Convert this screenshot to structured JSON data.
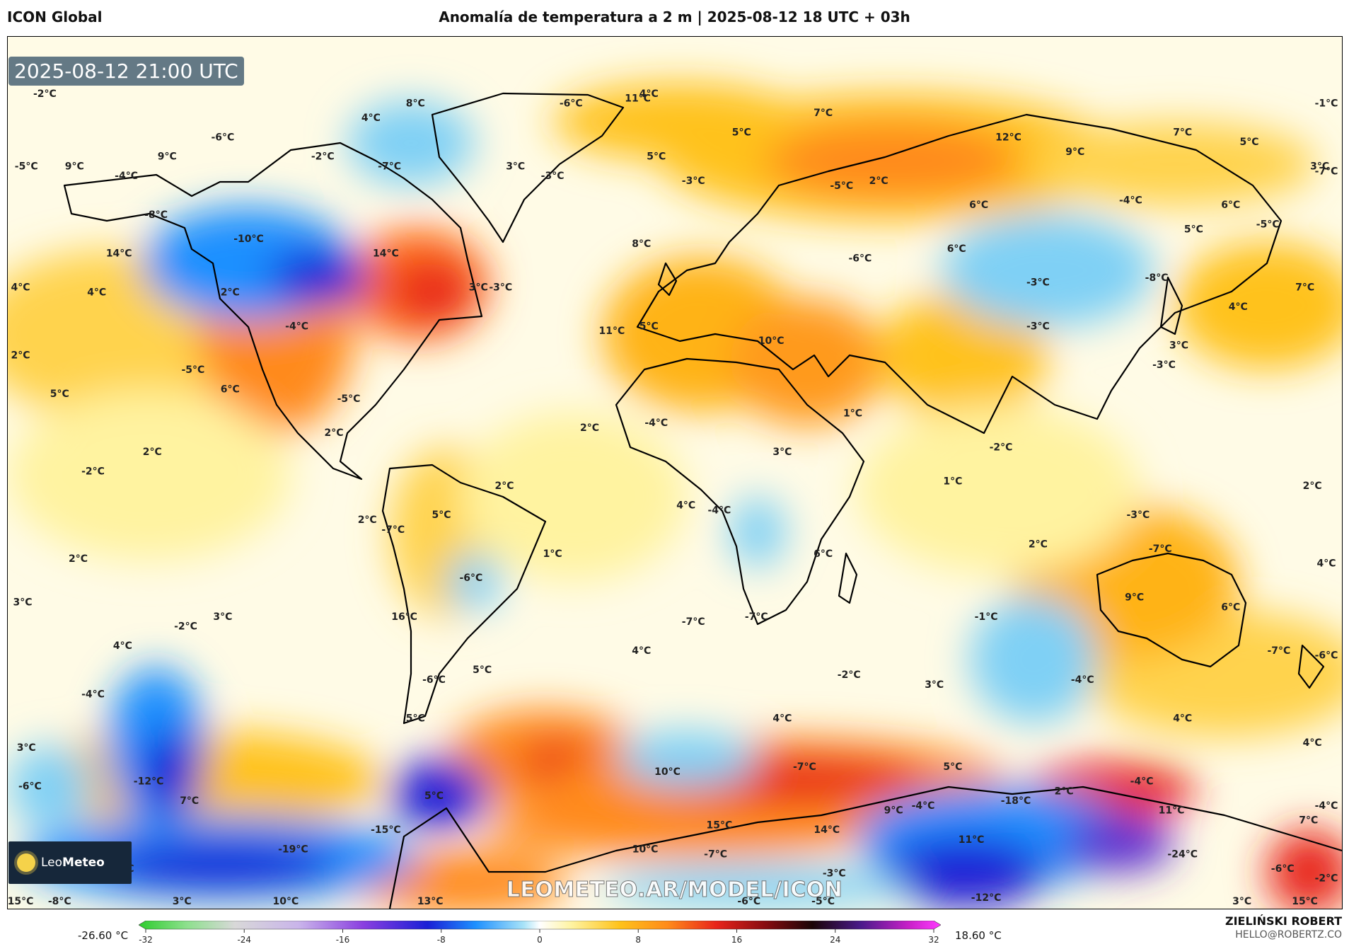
{
  "header": {
    "model_name": "ICON Global",
    "title": "Anomalía de temperatura a 2 m | 2025-08-12 18 UTC + 03h"
  },
  "map": {
    "valid_time": "2025-08-12 21:00 UTC",
    "watermark": "LEOMETEO.AR/MODEL/ICON",
    "logo_text_light": "Leo",
    "logo_text_bold": "Meteo",
    "labels": [
      {
        "text": "-2°C",
        "lon": -170,
        "lat": 80
      },
      {
        "text": "-6°C",
        "lon": -28,
        "lat": 78
      },
      {
        "text": "11°C",
        "lon": -10,
        "lat": 79
      },
      {
        "text": "4°C",
        "lon": -7,
        "lat": 80
      },
      {
        "text": "8°C",
        "lon": -70,
        "lat": 78
      },
      {
        "text": "4°C",
        "lon": -82,
        "lat": 75
      },
      {
        "text": "-6°C",
        "lon": -122,
        "lat": 71
      },
      {
        "text": "9°C",
        "lon": -137,
        "lat": 67
      },
      {
        "text": "-2°C",
        "lon": -95,
        "lat": 67
      },
      {
        "text": "-5°C",
        "lon": -175,
        "lat": 65
      },
      {
        "text": "9°C",
        "lon": -162,
        "lat": 65
      },
      {
        "text": "-4°C",
        "lon": -148,
        "lat": 63
      },
      {
        "text": "-7°C",
        "lon": -77,
        "lat": 65
      },
      {
        "text": "3°C",
        "lon": -43,
        "lat": 65
      },
      {
        "text": "-3°C",
        "lon": -33,
        "lat": 63
      },
      {
        "text": "-3°C",
        "lon": 5,
        "lat": 62
      },
      {
        "text": "5°C",
        "lon": 18,
        "lat": 72
      },
      {
        "text": "7°C",
        "lon": 40,
        "lat": 76
      },
      {
        "text": "5°C",
        "lon": -5,
        "lat": 67
      },
      {
        "text": "-5°C",
        "lon": 45,
        "lat": 61
      },
      {
        "text": "2°C",
        "lon": 55,
        "lat": 62
      },
      {
        "text": "12°C",
        "lon": 90,
        "lat": 71
      },
      {
        "text": "9°C",
        "lon": 108,
        "lat": 68
      },
      {
        "text": "7°C",
        "lon": 137,
        "lat": 72
      },
      {
        "text": "5°C",
        "lon": 155,
        "lat": 70
      },
      {
        "text": "-1°C",
        "lon": 177,
        "lat": 78
      },
      {
        "text": "3°C",
        "lon": 174,
        "lat": 65
      },
      {
        "text": "-7°C",
        "lon": 177,
        "lat": 64
      },
      {
        "text": "6°C",
        "lon": 82,
        "lat": 57
      },
      {
        "text": "-4°C",
        "lon": 123,
        "lat": 58
      },
      {
        "text": "6°C",
        "lon": 150,
        "lat": 57
      },
      {
        "text": "5°C",
        "lon": 140,
        "lat": 52
      },
      {
        "text": "-5°C",
        "lon": 160,
        "lat": 53
      },
      {
        "text": "-8°C",
        "lon": -140,
        "lat": 55
      },
      {
        "text": "-10°C",
        "lon": -115,
        "lat": 50
      },
      {
        "text": "14°C",
        "lon": -78,
        "lat": 47
      },
      {
        "text": "14°C",
        "lon": -150,
        "lat": 47
      },
      {
        "text": "4°C",
        "lon": -177,
        "lat": 40
      },
      {
        "text": "4°C",
        "lon": -156,
        "lat": 39
      },
      {
        "text": "2°C",
        "lon": -120,
        "lat": 39
      },
      {
        "text": "3°C",
        "lon": -53,
        "lat": 40
      },
      {
        "text": "-3°C",
        "lon": -47,
        "lat": 40
      },
      {
        "text": "8°C",
        "lon": -9,
        "lat": 49
      },
      {
        "text": "6°C",
        "lon": 76,
        "lat": 48
      },
      {
        "text": "-6°C",
        "lon": 50,
        "lat": 46
      },
      {
        "text": "-3°C",
        "lon": 98,
        "lat": 41
      },
      {
        "text": "-8°C",
        "lon": 130,
        "lat": 42
      },
      {
        "text": "7°C",
        "lon": 170,
        "lat": 40
      },
      {
        "text": "-4°C",
        "lon": -102,
        "lat": 32
      },
      {
        "text": "11°C",
        "lon": -17,
        "lat": 31
      },
      {
        "text": "5°C",
        "lon": -7,
        "lat": 32
      },
      {
        "text": "10°C",
        "lon": 26,
        "lat": 29
      },
      {
        "text": "-3°C",
        "lon": 98,
        "lat": 32
      },
      {
        "text": "4°C",
        "lon": 152,
        "lat": 36
      },
      {
        "text": "3°C",
        "lon": 136,
        "lat": 28
      },
      {
        "text": "-3°C",
        "lon": 132,
        "lat": 24
      },
      {
        "text": "2°C",
        "lon": -178,
        "lat": 26
      },
      {
        "text": "-5°C",
        "lon": -130,
        "lat": 23
      },
      {
        "text": "5°C",
        "lon": -166,
        "lat": 18
      },
      {
        "text": "6°C",
        "lon": -120,
        "lat": 19
      },
      {
        "text": "-5°C",
        "lon": -88,
        "lat": 17
      },
      {
        "text": "1°C",
        "lon": 48,
        "lat": 14
      },
      {
        "text": "2°C",
        "lon": -92,
        "lat": 10
      },
      {
        "text": "2°C",
        "lon": -23,
        "lat": 11
      },
      {
        "text": "-4°C",
        "lon": -5,
        "lat": 12
      },
      {
        "text": "3°C",
        "lon": 29,
        "lat": 6
      },
      {
        "text": "-2°C",
        "lon": 88,
        "lat": 7
      },
      {
        "text": "2°C",
        "lon": -141,
        "lat": 6
      },
      {
        "text": "-2°C",
        "lon": -157,
        "lat": 2
      },
      {
        "text": "2°C",
        "lon": -46,
        "lat": -1
      },
      {
        "text": "1°C",
        "lon": 75,
        "lat": 0
      },
      {
        "text": "2°C",
        "lon": 172,
        "lat": -1
      },
      {
        "text": "2°C",
        "lon": -83,
        "lat": -8
      },
      {
        "text": "-7°C",
        "lon": -76,
        "lat": -10
      },
      {
        "text": "5°C",
        "lon": -63,
        "lat": -7
      },
      {
        "text": "4°C",
        "lon": 3,
        "lat": -5
      },
      {
        "text": "-4°C",
        "lon": 12,
        "lat": -6
      },
      {
        "text": "2°C",
        "lon": 98,
        "lat": -13
      },
      {
        "text": "-3°C",
        "lon": 125,
        "lat": -7
      },
      {
        "text": "-6°C",
        "lon": -55,
        "lat": -20
      },
      {
        "text": "1°C",
        "lon": -33,
        "lat": -15
      },
      {
        "text": "6°C",
        "lon": 40,
        "lat": -15
      },
      {
        "text": "2°C",
        "lon": -161,
        "lat": -16
      },
      {
        "text": "-7°C",
        "lon": 131,
        "lat": -14
      },
      {
        "text": "4°C",
        "lon": 179,
        "lat": -17
      },
      {
        "text": "3°C",
        "lon": -176,
        "lat": -25
      },
      {
        "text": "9°C",
        "lon": 124,
        "lat": -24
      },
      {
        "text": "6°C",
        "lon": 150,
        "lat": -26
      },
      {
        "text": "-7°C",
        "lon": 5,
        "lat": -29
      },
      {
        "text": "-7°C",
        "lon": 22,
        "lat": -28
      },
      {
        "text": "16°C",
        "lon": -73,
        "lat": -28
      },
      {
        "text": "-2°C",
        "lon": -132,
        "lat": -30
      },
      {
        "text": "3°C",
        "lon": -122,
        "lat": -28
      },
      {
        "text": "-1°C",
        "lon": 84,
        "lat": -28
      },
      {
        "text": "4°C",
        "lon": -149,
        "lat": -34
      },
      {
        "text": "4°C",
        "lon": -9,
        "lat": -35
      },
      {
        "text": "-7°C",
        "lon": 163,
        "lat": -35
      },
      {
        "text": "-6°C",
        "lon": 179,
        "lat": -36
      },
      {
        "text": "5°C",
        "lon": -52,
        "lat": -39
      },
      {
        "text": "-6°C",
        "lon": -65,
        "lat": -41
      },
      {
        "text": "-2°C",
        "lon": 47,
        "lat": -40
      },
      {
        "text": "3°C",
        "lon": 70,
        "lat": -42
      },
      {
        "text": "-4°C",
        "lon": 110,
        "lat": -41
      },
      {
        "text": "-4°C",
        "lon": -157,
        "lat": -44
      },
      {
        "text": "5°C",
        "lon": -70,
        "lat": -49
      },
      {
        "text": "4°C",
        "lon": 29,
        "lat": -49
      },
      {
        "text": "4°C",
        "lon": 137,
        "lat": -49
      },
      {
        "text": "3°C",
        "lon": -175,
        "lat": -55
      },
      {
        "text": "4°C",
        "lon": 172,
        "lat": -54
      },
      {
        "text": "10°C",
        "lon": -2,
        "lat": -60
      },
      {
        "text": "-7°C",
        "lon": 35,
        "lat": -59
      },
      {
        "text": "5°C",
        "lon": 75,
        "lat": -59
      },
      {
        "text": "-6°C",
        "lon": -174,
        "lat": -63
      },
      {
        "text": "-12°C",
        "lon": -142,
        "lat": -62
      },
      {
        "text": "-4°C",
        "lon": 126,
        "lat": -62
      },
      {
        "text": "7°C",
        "lon": -131,
        "lat": -66
      },
      {
        "text": "5°C",
        "lon": -65,
        "lat": -65
      },
      {
        "text": "-18°C",
        "lon": 92,
        "lat": -66
      },
      {
        "text": "2°C",
        "lon": 105,
        "lat": -64
      },
      {
        "text": "9°C",
        "lon": 59,
        "lat": -68
      },
      {
        "text": "-4°C",
        "lon": 67,
        "lat": -67
      },
      {
        "text": "-4°C",
        "lon": 178,
        "lat": -67
      },
      {
        "text": "11°C",
        "lon": 134,
        "lat": -68
      },
      {
        "text": "7°C",
        "lon": 171,
        "lat": -70
      },
      {
        "text": "-15°C",
        "lon": -78,
        "lat": -72
      },
      {
        "text": "15°C",
        "lon": 12,
        "lat": -71
      },
      {
        "text": "14°C",
        "lon": 41,
        "lat": -72
      },
      {
        "text": "11°C",
        "lon": 80,
        "lat": -74
      },
      {
        "text": "-19°C",
        "lon": -103,
        "lat": -76
      },
      {
        "text": "10°C",
        "lon": -8,
        "lat": -76
      },
      {
        "text": "-7°C",
        "lon": 11,
        "lat": -77
      },
      {
        "text": "-24°C",
        "lon": 137,
        "lat": -77
      },
      {
        "text": "-20°C",
        "lon": -150,
        "lat": -80
      },
      {
        "text": "-3°C",
        "lon": 43,
        "lat": -81
      },
      {
        "text": "-6°C",
        "lon": 164,
        "lat": -80
      },
      {
        "text": "-2°C",
        "lon": 178,
        "lat": -82
      },
      {
        "text": "-12°C",
        "lon": 84,
        "lat": -86
      },
      {
        "text": "-5°C",
        "lon": 40,
        "lat": -87
      },
      {
        "text": "13°C",
        "lon": -66,
        "lat": -88
      },
      {
        "text": "-6°C",
        "lon": 20,
        "lat": -88
      },
      {
        "text": "15°C",
        "lon": -180,
        "lat": -90
      },
      {
        "text": "-8°C",
        "lon": -166,
        "lat": -90
      },
      {
        "text": "3°C",
        "lon": -133,
        "lat": -90
      },
      {
        "text": "10°C",
        "lon": -105,
        "lat": -90
      },
      {
        "text": "3°C",
        "lon": 153,
        "lat": -89
      },
      {
        "text": "15°C",
        "lon": 170,
        "lat": -89
      }
    ],
    "colors": {
      "cold_deep": "#1a1fd6",
      "cold": "#1e90ff",
      "cool": "#7fd0f5",
      "mild_cool": "#c8ecfb",
      "neutral": "#ffffff",
      "warm_light": "#fff3a0",
      "warm": "#ffc21a",
      "hot": "#ff8a1a",
      "very_hot": "#e8251b",
      "coast": "#000000"
    }
  },
  "colorbar": {
    "min_label": "-26.60 °C",
    "max_label": "18.60 °C",
    "ticks": [
      "-32",
      "-24",
      "-16",
      "-8",
      "0",
      "8",
      "16",
      "24",
      "32"
    ],
    "tick_values": [
      -32,
      -24,
      -16,
      -8,
      0,
      8,
      16,
      24,
      32
    ],
    "range": [
      -32,
      32
    ]
  },
  "credits": {
    "author": "ZIELIŃSKI ROBERT",
    "email": "HELLO@ROBERTZ.CO"
  }
}
